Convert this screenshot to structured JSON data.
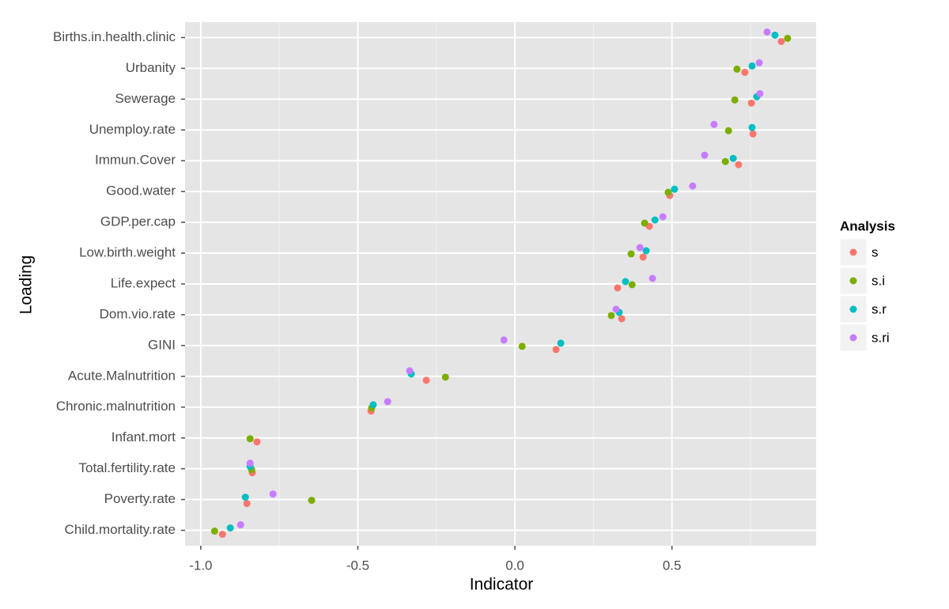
{
  "chart_data": {
    "type": "dot",
    "x_label": "Indicator",
    "y_label": "Loading",
    "legend_title": "Analysis",
    "legend_position": "right",
    "grid": true,
    "categories": [
      "Births.in.health.clinic",
      "Urbanity",
      "Sewerage",
      "Unemploy.rate",
      "Immun.Cover",
      "Good.water",
      "GDP.per.cap",
      "Low.birth.weight",
      "Life.expect",
      "Dom.vio.rate",
      "GINI",
      "Acute.Malnutrition",
      "Chronic.malnutrition",
      "Infant.mort",
      "Total.fertility.rate",
      "Poverty.rate",
      "Child.mortality.rate"
    ],
    "xlim": [
      -1.05,
      0.959
    ],
    "xticks": [
      {
        "value": -1.0,
        "label": "-1.0"
      },
      {
        "value": -0.5,
        "label": "-0.5"
      },
      {
        "value": 0.0,
        "label": "0.0"
      },
      {
        "value": 0.5,
        "label": "0.5"
      }
    ],
    "series": [
      {
        "name": "s",
        "color": "#F8766D",
        "values": [
          0.848,
          0.732,
          0.753,
          0.758,
          0.712,
          0.493,
          0.428,
          0.408,
          0.327,
          0.34,
          0.131,
          -0.282,
          -0.458,
          -0.821,
          -0.836,
          -0.853,
          -0.931
        ]
      },
      {
        "name": "s.i",
        "color": "#7CAE00",
        "values": [
          0.868,
          0.707,
          0.7,
          0.68,
          0.67,
          0.488,
          0.413,
          0.37,
          0.373,
          0.307,
          0.023,
          -0.221,
          -0.456,
          -0.843,
          -0.838,
          -0.647,
          -0.956
        ]
      },
      {
        "name": "s.r",
        "color": "#00BFC4",
        "values": [
          0.828,
          0.755,
          0.77,
          0.755,
          0.695,
          0.508,
          0.446,
          0.418,
          0.352,
          0.332,
          0.146,
          -0.33,
          -0.451,
          null,
          -0.843,
          -0.858,
          -0.906
        ]
      },
      {
        "name": "s.ri",
        "color": "#C77CFF",
        "values": [
          0.803,
          0.778,
          0.78,
          0.634,
          0.604,
          0.566,
          0.471,
          0.398,
          0.438,
          0.322,
          -0.035,
          -0.335,
          -0.405,
          null,
          -0.843,
          -0.77,
          -0.873
        ]
      }
    ]
  }
}
